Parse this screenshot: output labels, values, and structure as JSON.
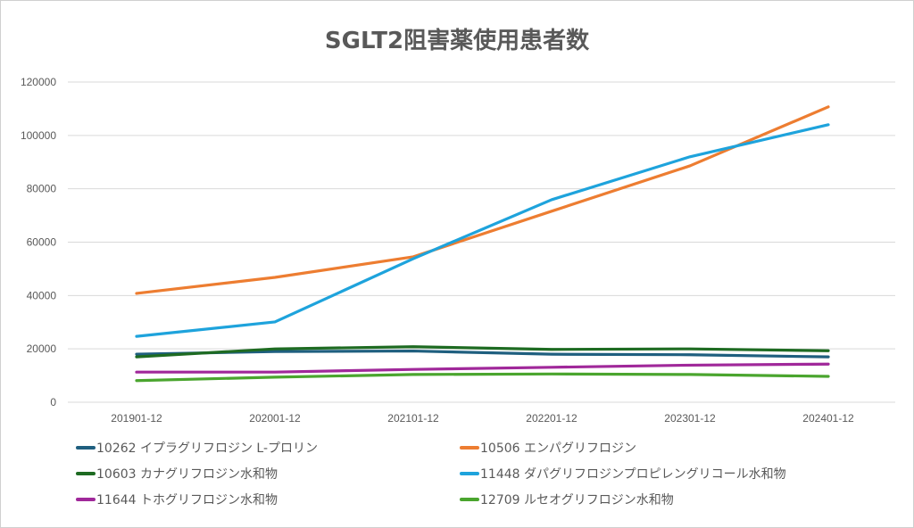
{
  "chart_data": {
    "type": "line",
    "title": "SGLT2阻害薬使用患者数",
    "xlabel": "",
    "ylabel": "",
    "categories": [
      "201901-12",
      "202001-12",
      "202101-12",
      "202201-12",
      "202301-12",
      "202401-12"
    ],
    "ylim": [
      0,
      120000
    ],
    "yticks": [
      "0",
      "20000",
      "40000",
      "60000",
      "80000",
      "100000",
      "120000"
    ],
    "grid": true,
    "legend_position": "bottom",
    "series": [
      {
        "name": "10262 イプラグリフロジン L-プロリン",
        "color": "#1f5f7f",
        "values": [
          18000,
          19000,
          19200,
          18000,
          17800,
          17000
        ]
      },
      {
        "name": "10506 エンパグリフロジン",
        "color": "#ed7d31",
        "values": [
          40800,
          46800,
          54500,
          71600,
          88600,
          110700
        ]
      },
      {
        "name": "10603 カナグリフロジン水和物",
        "color": "#1e6b22",
        "values": [
          17000,
          20000,
          20800,
          19800,
          20000,
          19300
        ]
      },
      {
        "name": "11448 ダパグリフロジンプロピレングリコール水和物",
        "color": "#1ea3dc",
        "values": [
          24700,
          30100,
          53800,
          75900,
          92000,
          104000
        ]
      },
      {
        "name": "11644 トホグリフロジン水和物",
        "color": "#a0289a",
        "values": [
          11300,
          11300,
          12300,
          13100,
          13900,
          14300
        ]
      },
      {
        "name": "12709 ルセオグリフロジン水和物",
        "color": "#4aa52e",
        "values": [
          8100,
          9400,
          10400,
          10600,
          10400,
          9700
        ]
      }
    ]
  }
}
